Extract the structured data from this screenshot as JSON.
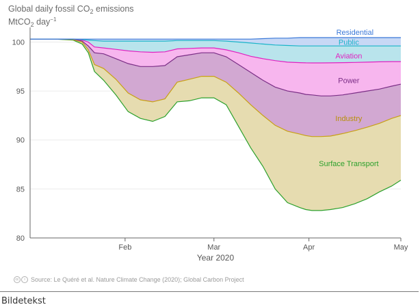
{
  "chart_data": {
    "type": "area",
    "title": "Global daily fossil CO",
    "title_sub": "2",
    "title_tail": " emissions",
    "ylabel_unit": "MtCO",
    "ylabel_sub": "2",
    "ylabel_tail": " day",
    "ylabel_sup": "−1",
    "xlabel": "Year 2020",
    "ylim": [
      80,
      101.5
    ],
    "yticks": [
      "80",
      "85",
      "90",
      "95",
      "100"
    ],
    "x_range_days": [
      0,
      121
    ],
    "xticks": [
      {
        "label": "Feb",
        "day": 31
      },
      {
        "label": "Mar",
        "day": 60
      },
      {
        "label": "Apr",
        "day": 91
      },
      {
        "label": "May",
        "day": 121
      }
    ],
    "baseline": 100.3,
    "days": [
      0,
      8,
      14,
      17,
      19,
      21,
      24,
      28,
      32,
      36,
      40,
      44,
      48,
      52,
      56,
      60,
      64,
      68,
      72,
      76,
      80,
      84,
      88,
      90,
      92,
      95,
      98,
      102,
      106,
      110,
      114,
      118,
      121
    ],
    "series": [
      {
        "name": "Surface Transport",
        "color": "#2ca02c",
        "fill": "#b3e6b3",
        "values": [
          100.3,
          100.3,
          100.2,
          99.8,
          98.9,
          97.0,
          96.1,
          94.6,
          92.9,
          92.2,
          91.9,
          92.4,
          93.9,
          94.0,
          94.3,
          94.3,
          93.6,
          91.4,
          89.2,
          87.3,
          85.0,
          83.6,
          83.1,
          82.9,
          82.8,
          82.8,
          82.9,
          83.1,
          83.5,
          84.0,
          84.7,
          85.3,
          85.9
        ]
      },
      {
        "name": "Industry",
        "color": "#c8a014",
        "fill": "#e6dcb0",
        "values": [
          100.3,
          100.3,
          100.25,
          100.0,
          99.2,
          97.7,
          97.3,
          96.2,
          94.8,
          94.1,
          93.9,
          94.2,
          95.9,
          96.2,
          96.5,
          96.5,
          95.9,
          94.8,
          93.6,
          92.5,
          91.5,
          90.9,
          90.6,
          90.45,
          90.35,
          90.35,
          90.4,
          90.65,
          90.95,
          91.3,
          91.7,
          92.2,
          92.5
        ]
      },
      {
        "name": "Power",
        "color": "#7b2e86",
        "fill": "#d2a8d2",
        "values": [
          100.3,
          100.3,
          100.3,
          100.1,
          99.6,
          98.9,
          98.8,
          98.3,
          97.8,
          97.5,
          97.5,
          97.6,
          98.5,
          98.7,
          98.9,
          98.9,
          98.5,
          97.7,
          96.9,
          96.1,
          95.4,
          95.0,
          94.8,
          94.65,
          94.6,
          94.5,
          94.5,
          94.6,
          94.8,
          95.0,
          95.2,
          95.5,
          95.7
        ]
      },
      {
        "name": "Aviation",
        "color": "#e020c0",
        "fill": "#f7b6ee",
        "values": [
          100.3,
          100.3,
          100.3,
          100.2,
          100.0,
          99.5,
          99.4,
          99.25,
          99.1,
          99.0,
          98.95,
          99.0,
          99.3,
          99.35,
          99.4,
          99.4,
          99.2,
          98.9,
          98.55,
          98.3,
          98.1,
          97.95,
          97.9,
          97.88,
          97.87,
          97.87,
          97.88,
          97.9,
          97.92,
          97.95,
          97.98,
          98.0,
          98.0
        ]
      },
      {
        "name": "Public",
        "color": "#19b4c8",
        "fill": "#b9e4ec",
        "values": [
          100.3,
          100.3,
          100.3,
          100.25,
          100.2,
          100.15,
          100.1,
          100.1,
          100.1,
          100.1,
          100.1,
          100.1,
          100.15,
          100.15,
          100.15,
          100.15,
          100.1,
          100.0,
          99.9,
          99.8,
          99.7,
          99.65,
          99.6,
          99.6,
          99.6,
          99.6,
          99.6,
          99.6,
          99.6,
          99.6,
          99.6,
          99.6,
          99.6
        ]
      },
      {
        "name": "Residential",
        "color": "#3a78d8",
        "fill": "#c7d8f5",
        "values": [
          100.3,
          100.3,
          100.3,
          100.3,
          100.3,
          100.3,
          100.3,
          100.3,
          100.3,
          100.3,
          100.3,
          100.3,
          100.3,
          100.3,
          100.3,
          100.3,
          100.3,
          100.3,
          100.3,
          100.35,
          100.4,
          100.4,
          100.45,
          100.45,
          100.45,
          100.45,
          100.45,
          100.45,
          100.45,
          100.45,
          100.45,
          100.45,
          100.45
        ]
      }
    ],
    "annotations": [
      {
        "text": "Residential",
        "day": 106,
        "value": 101.0,
        "color": "#3a78d8"
      },
      {
        "text": "Public",
        "day": 104,
        "value": 100.0,
        "color": "#19b4c8"
      },
      {
        "text": "Aviation",
        "day": 104,
        "value": 98.6,
        "color": "#e020c0"
      },
      {
        "text": "Power",
        "day": 104,
        "value": 96.1,
        "color": "#7b2e86"
      },
      {
        "text": "Industry",
        "day": 104,
        "value": 92.2,
        "color": "#b8900a"
      },
      {
        "text": "Surface Transport",
        "day": 104,
        "value": 87.6,
        "color": "#2ca02c"
      }
    ]
  },
  "source": "Source: Le Quéré et al. Nature Climate Change (2020); Global Carbon Project",
  "caption": "Bildetekst"
}
